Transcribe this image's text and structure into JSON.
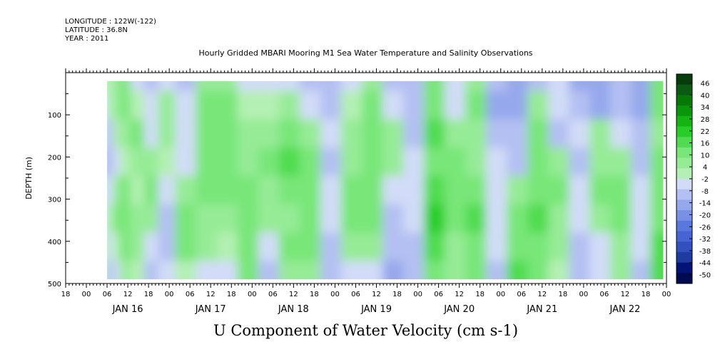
{
  "header": {
    "longitude": "LONGITUDE : 122W(-122)",
    "latitude": "LATITUDE : 36.8N",
    "year": "YEAR : 2011",
    "title": "Hourly Gridded MBARI Mooring M1 Sea Water Temperature and Salinity Observations"
  },
  "chart_data": {
    "type": "heatmap",
    "title": "Hourly Gridded MBARI Mooring M1 Sea Water Temperature and Salinity Observations",
    "xlabel": "U Component of Water Velocity (cm s-1)",
    "ylabel": "DEPTH (m)",
    "variable": "U Component of Water Velocity (cm s-1)",
    "x_start": "2011-01-15 18:00",
    "x_end": "2011-01-23 00:00",
    "data_start": "2011-01-16 06:00",
    "data_end": "2011-01-22 23:00",
    "ylim": [
      500,
      0
    ],
    "data_depth_range": [
      20,
      490
    ],
    "y_ticks": [
      100,
      200,
      300,
      400,
      500
    ],
    "y_tick_labels": [
      "100",
      "200",
      "300",
      "400",
      "500"
    ],
    "hour_tick_labels": [
      "00",
      "06",
      "12",
      "18"
    ],
    "day_labels": [
      "JAN 16",
      "JAN 17",
      "JAN 18",
      "JAN 19",
      "JAN 20",
      "JAN 21",
      "JAN 22"
    ],
    "colorbar": {
      "levels": [
        -50,
        -44,
        -38,
        -32,
        -26,
        -20,
        -14,
        -8,
        -2,
        4,
        10,
        16,
        22,
        28,
        34,
        40,
        46
      ],
      "labels": [
        "46",
        "40",
        "34",
        "28",
        "22",
        "16",
        "10",
        "4",
        "-2",
        "-8",
        "-14",
        "-20",
        "-26",
        "-32",
        "-38",
        "-44",
        "-50"
      ],
      "colors": [
        "#000a50",
        "#001478",
        "#1e3ca0",
        "#3250be",
        "#4664d2",
        "#5a78dc",
        "#7890e6",
        "#96a8ec",
        "#b4c0f2",
        "#d2dcf8",
        "#b4f0b4",
        "#96eb96",
        "#78e678",
        "#50dc50",
        "#28cd28",
        "#14b414",
        "#0a960a",
        "#057805",
        "#0a5a14",
        "#063c0c"
      ]
    },
    "columns": [
      {
        "day": "2011-01-16",
        "hour": 6,
        "u": [
          -2,
          -4,
          -6,
          -8,
          -6,
          -4,
          -2,
          0
        ]
      },
      {
        "day": "2011-01-16",
        "hour": 8,
        "u": [
          2,
          -2,
          -8,
          -10,
          -4,
          2,
          -6,
          -8
        ]
      },
      {
        "day": "2011-01-16",
        "hour": 10,
        "u": [
          6,
          4,
          2,
          -4,
          4,
          8,
          2,
          -4
        ]
      },
      {
        "day": "2011-01-16",
        "hour": 12,
        "u": [
          8,
          10,
          6,
          2,
          8,
          12,
          10,
          6
        ]
      },
      {
        "day": "2011-01-16",
        "hour": 16,
        "u": [
          -4,
          2,
          8,
          6,
          2,
          6,
          4,
          -2
        ]
      },
      {
        "day": "2011-01-16",
        "hour": 20,
        "u": [
          -8,
          -6,
          -4,
          4,
          10,
          4,
          -6,
          -10
        ]
      },
      {
        "day": "2011-01-17",
        "hour": 0,
        "u": [
          -6,
          4,
          6,
          2,
          -4,
          -8,
          -10,
          -6
        ]
      },
      {
        "day": "2011-01-17",
        "hour": 6,
        "u": [
          -8,
          -6,
          -4,
          -6,
          6,
          10,
          8,
          2
        ]
      },
      {
        "day": "2011-01-17",
        "hour": 12,
        "u": [
          4,
          10,
          12,
          8,
          10,
          6,
          4,
          -4
        ]
      },
      {
        "day": "2011-01-17",
        "hour": 18,
        "u": [
          6,
          8,
          12,
          10,
          8,
          4,
          -2,
          -6
        ]
      },
      {
        "day": "2011-01-18",
        "hour": 0,
        "u": [
          -4,
          2,
          4,
          6,
          8,
          10,
          12,
          8
        ]
      },
      {
        "day": "2011-01-18",
        "hour": 6,
        "u": [
          -6,
          -2,
          6,
          8,
          4,
          6,
          -6,
          -8
        ]
      },
      {
        "day": "2011-01-18",
        "hour": 12,
        "u": [
          -4,
          4,
          12,
          14,
          8,
          4,
          8,
          6
        ]
      },
      {
        "day": "2011-01-18",
        "hour": 18,
        "u": [
          -8,
          -4,
          4,
          8,
          10,
          12,
          8,
          4
        ]
      },
      {
        "day": "2011-01-19",
        "hour": 0,
        "u": [
          -10,
          -8,
          -6,
          -8,
          -6,
          -4,
          -8,
          -10
        ]
      },
      {
        "day": "2011-01-19",
        "hour": 6,
        "u": [
          -6,
          2,
          4,
          6,
          8,
          10,
          6,
          -4
        ]
      },
      {
        "day": "2011-01-19",
        "hour": 12,
        "u": [
          4,
          10,
          12,
          10,
          12,
          8,
          6,
          -6
        ]
      },
      {
        "day": "2011-01-19",
        "hour": 18,
        "u": [
          -8,
          -6,
          4,
          6,
          -4,
          -8,
          -10,
          -12
        ]
      },
      {
        "day": "2011-01-20",
        "hour": 0,
        "u": [
          -10,
          -8,
          -8,
          -6,
          -4,
          -6,
          -8,
          -10
        ]
      },
      {
        "day": "2011-01-20",
        "hour": 6,
        "u": [
          8,
          12,
          14,
          12,
          16,
          18,
          14,
          12
        ]
      },
      {
        "day": "2011-01-20",
        "hour": 12,
        "u": [
          -6,
          -4,
          4,
          8,
          10,
          8,
          6,
          4
        ]
      },
      {
        "day": "2011-01-20",
        "hour": 18,
        "u": [
          6,
          8,
          4,
          6,
          12,
          14,
          10,
          8
        ]
      },
      {
        "day": "2011-01-21",
        "hour": 0,
        "u": [
          -10,
          -12,
          -8,
          -6,
          -4,
          -6,
          -4,
          -8
        ]
      },
      {
        "day": "2011-01-21",
        "hour": 6,
        "u": [
          -16,
          -14,
          -10,
          -8,
          4,
          8,
          12,
          14
        ]
      },
      {
        "day": "2011-01-21",
        "hour": 12,
        "u": [
          -8,
          6,
          10,
          12,
          10,
          14,
          12,
          10
        ]
      },
      {
        "day": "2011-01-21",
        "hour": 18,
        "u": [
          -6,
          -4,
          -8,
          4,
          8,
          6,
          4,
          2
        ]
      },
      {
        "day": "2011-01-22",
        "hour": 0,
        "u": [
          -14,
          -10,
          -6,
          -8,
          -4,
          -6,
          -8,
          -10
        ]
      },
      {
        "day": "2011-01-22",
        "hour": 6,
        "u": [
          -16,
          -14,
          4,
          6,
          8,
          4,
          -4,
          -6
        ]
      },
      {
        "day": "2011-01-22",
        "hour": 12,
        "u": [
          -10,
          -8,
          -6,
          6,
          10,
          8,
          6,
          4
        ]
      },
      {
        "day": "2011-01-22",
        "hour": 18,
        "u": [
          -14,
          -12,
          -10,
          -8,
          -6,
          -4,
          -6,
          -8
        ]
      },
      {
        "day": "2011-01-22",
        "hour": 23,
        "u": [
          10,
          8,
          6,
          8,
          10,
          12,
          14,
          16
        ]
      }
    ]
  }
}
